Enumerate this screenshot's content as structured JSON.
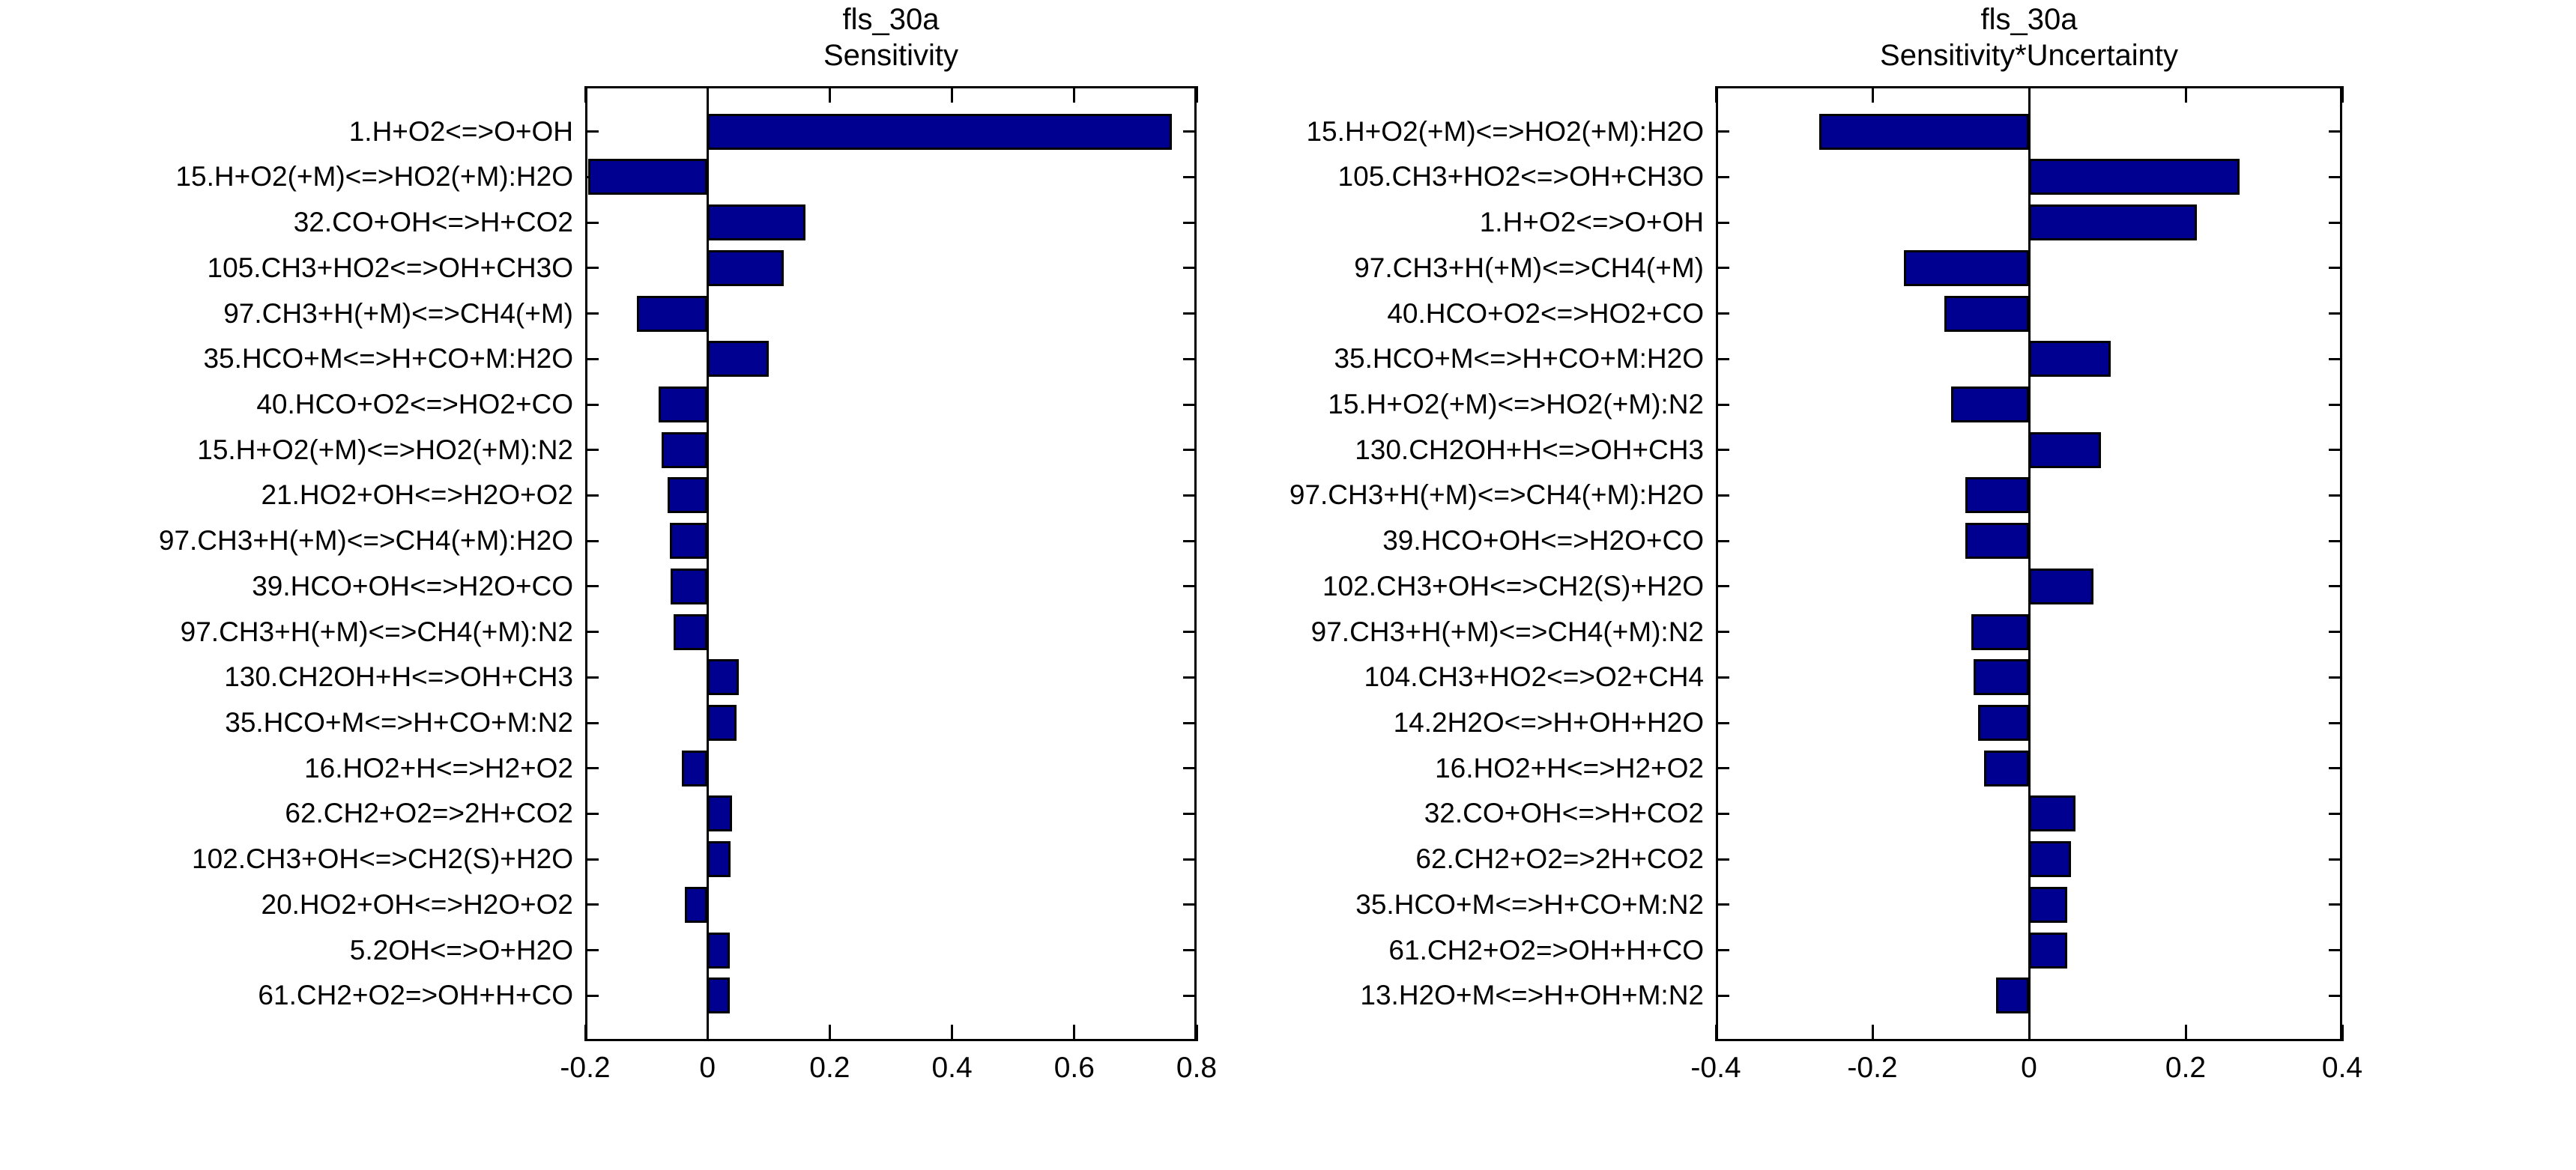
{
  "figure": {
    "background": "#ffffff",
    "bar_fill_color": "#000090",
    "bar_edge_color": "#000000",
    "axis_color": "#000000"
  },
  "chart_data": [
    {
      "type": "bar",
      "orientation": "horizontal",
      "title_lines": [
        "fls_30a",
        "Sensitivity"
      ],
      "title": "fls_30a Sensitivity",
      "xlabel": "",
      "ylabel": "",
      "xlim": [
        -0.2,
        0.8
      ],
      "xticks": [
        -0.2,
        0,
        0.2,
        0.4,
        0.6,
        0.8
      ],
      "xtick_labels": [
        "-0.2",
        "0",
        "0.2",
        "0.4",
        "0.6",
        "0.8"
      ],
      "grid": false,
      "legend": null,
      "bar_color": "#000090",
      "categories": [
        "1.H+O2<=>O+OH",
        "15.H+O2(+M)<=>HO2(+M):H2O",
        "32.CO+OH<=>H+CO2",
        "105.CH3+HO2<=>OH+CH3O",
        "97.CH3+H(+M)<=>CH4(+M)",
        "35.HCO+M<=>H+CO+M:H2O",
        "40.HCO+O2<=>HO2+CO",
        "15.H+O2(+M)<=>HO2(+M):N2",
        "21.HO2+OH<=>H2O+O2",
        "97.CH3+H(+M)<=>CH4(+M):H2O",
        "39.HCO+OH<=>H2O+CO",
        "97.CH3+H(+M)<=>CH4(+M):N2",
        "130.CH2OH+H<=>OH+CH3",
        "35.HCO+M<=>H+CO+M:N2",
        "16.HO2+H<=>H2+O2",
        "62.CH2+O2=>2H+CO2",
        "102.CH3+OH<=>CH2(S)+H2O",
        "20.HO2+OH<=>H2O+O2",
        "5.2OH<=>O+H2O",
        "61.CH2+O2=>OH+H+CO"
      ],
      "values": [
        0.76,
        -0.195,
        0.16,
        0.125,
        -0.115,
        0.1,
        -0.08,
        -0.075,
        -0.065,
        -0.062,
        -0.06,
        -0.055,
        0.051,
        0.047,
        -0.042,
        0.04,
        0.038,
        -0.037,
        0.037,
        0.036
      ]
    },
    {
      "type": "bar",
      "orientation": "horizontal",
      "title_lines": [
        "fls_30a",
        "Sensitivity*Uncertainty"
      ],
      "title": "fls_30a Sensitivity*Uncertainty",
      "xlabel": "",
      "ylabel": "",
      "xlim": [
        -0.4,
        0.4
      ],
      "xticks": [
        -0.4,
        -0.2,
        0,
        0.2,
        0.4
      ],
      "xtick_labels": [
        "-0.4",
        "-0.2",
        "0",
        "0.2",
        "0.4"
      ],
      "grid": false,
      "legend": null,
      "bar_color": "#000090",
      "categories": [
        "15.H+O2(+M)<=>HO2(+M):H2O",
        "105.CH3+HO2<=>OH+CH3O",
        "1.H+O2<=>O+OH",
        "97.CH3+H(+M)<=>CH4(+M)",
        "40.HCO+O2<=>HO2+CO",
        "35.HCO+M<=>H+CO+M:H2O",
        "15.H+O2(+M)<=>HO2(+M):N2",
        "130.CH2OH+H<=>OH+CH3",
        "97.CH3+H(+M)<=>CH4(+M):H2O",
        "39.HCO+OH<=>H2O+CO",
        "102.CH3+OH<=>CH2(S)+H2O",
        "97.CH3+H(+M)<=>CH4(+M):N2",
        "104.CH3+HO2<=>O2+CH4",
        "14.2H2O<=>H+OH+H2O",
        "16.HO2+H<=>H2+O2",
        "32.CO+OH<=>H+CO2",
        "62.CH2+O2=>2H+CO2",
        "35.HCO+M<=>H+CO+M:N2",
        "61.CH2+O2=>OH+H+CO",
        "13.H2O+M<=>H+OH+M:N2"
      ],
      "values": [
        -0.268,
        0.269,
        0.214,
        -0.16,
        -0.108,
        0.104,
        -0.1,
        0.092,
        -0.081,
        -0.081,
        0.082,
        -0.074,
        -0.071,
        -0.065,
        -0.057,
        0.059,
        0.054,
        0.049,
        0.049,
        -0.042
      ]
    }
  ]
}
